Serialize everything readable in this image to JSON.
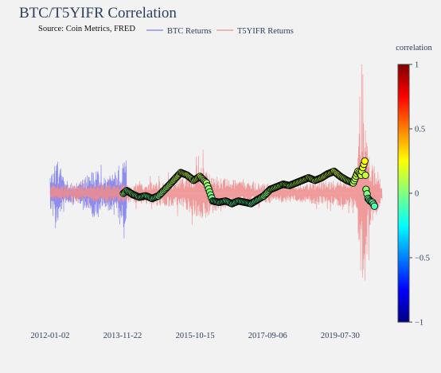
{
  "chart_data": {
    "type": "line",
    "title": "BTC/T5YIFR Correlation",
    "subtitle": "Source: Coin Metrics, FRED",
    "legend_placement": "top",
    "grid": false,
    "x_tick_labels": [
      "2012-01-02",
      "2013-11-22",
      "2015-10-15",
      "2017-09-06",
      "2019-07-30"
    ],
    "x_range": [
      "2012-01-02",
      "2020-09-01"
    ],
    "series": [
      {
        "name": "BTC Returns",
        "color": "#7b7bf0",
        "style": "line",
        "x_range": [
          "2012-01-02",
          "2013-12-31"
        ],
        "envelope": [
          {
            "x": "2012-01-02",
            "amp": 0.12
          },
          {
            "x": "2012-03-01",
            "amp": 0.3
          },
          {
            "x": "2012-06-01",
            "amp": 0.1
          },
          {
            "x": "2012-10-01",
            "amp": 0.08
          },
          {
            "x": "2013-03-01",
            "amp": 0.2
          },
          {
            "x": "2013-06-01",
            "amp": 0.12
          },
          {
            "x": "2013-10-01",
            "amp": 0.22
          },
          {
            "x": "2013-12-31",
            "amp": 0.3
          }
        ]
      },
      {
        "name": "T5YIFR Returns",
        "color": "#f08c8c",
        "style": "line",
        "x_range": [
          "2012-01-02",
          "2020-09-01"
        ],
        "envelope": [
          {
            "x": "2012-01-02",
            "amp": 0.06
          },
          {
            "x": "2013-06-01",
            "amp": 0.07
          },
          {
            "x": "2014-06-01",
            "amp": 0.08
          },
          {
            "x": "2015-06-01",
            "amp": 0.12
          },
          {
            "x": "2016-01-01",
            "amp": 0.22
          },
          {
            "x": "2016-06-01",
            "amp": 0.12
          },
          {
            "x": "2017-06-01",
            "amp": 0.08
          },
          {
            "x": "2018-06-01",
            "amp": 0.07
          },
          {
            "x": "2019-06-01",
            "amp": 0.1
          },
          {
            "x": "2020-01-01",
            "amp": 0.12
          },
          {
            "x": "2020-03-01",
            "amp": 0.95
          },
          {
            "x": "2020-05-01",
            "amp": 0.3
          },
          {
            "x": "2020-09-01",
            "amp": 0.08
          }
        ]
      },
      {
        "name": "Correlation",
        "style": "markers",
        "colorscale": "jet",
        "show_in_legend": false,
        "points": [
          {
            "x": "2013-12-01",
            "y": 0.0
          },
          {
            "x": "2014-01-01",
            "y": 0.02
          },
          {
            "x": "2014-03-01",
            "y": -0.01
          },
          {
            "x": "2014-05-01",
            "y": -0.03
          },
          {
            "x": "2014-07-01",
            "y": -0.02
          },
          {
            "x": "2014-09-01",
            "y": -0.04
          },
          {
            "x": "2014-11-01",
            "y": -0.02
          },
          {
            "x": "2015-01-01",
            "y": 0.03
          },
          {
            "x": "2015-03-01",
            "y": 0.08
          },
          {
            "x": "2015-04-15",
            "y": 0.12
          },
          {
            "x": "2015-06-01",
            "y": 0.16
          },
          {
            "x": "2015-08-01",
            "y": 0.14
          },
          {
            "x": "2015-10-01",
            "y": 0.1
          },
          {
            "x": "2015-12-01",
            "y": 0.13
          },
          {
            "x": "2016-02-01",
            "y": 0.08
          },
          {
            "x": "2016-04-01",
            "y": -0.06
          },
          {
            "x": "2016-06-01",
            "y": -0.07
          },
          {
            "x": "2016-08-01",
            "y": -0.06
          },
          {
            "x": "2016-10-01",
            "y": -0.08
          },
          {
            "x": "2016-12-01",
            "y": -0.06
          },
          {
            "x": "2017-02-01",
            "y": -0.07
          },
          {
            "x": "2017-04-01",
            "y": -0.08
          },
          {
            "x": "2017-06-01",
            "y": -0.05
          },
          {
            "x": "2017-08-01",
            "y": -0.02
          },
          {
            "x": "2017-10-01",
            "y": 0.03
          },
          {
            "x": "2017-12-01",
            "y": 0.05
          },
          {
            "x": "2018-02-01",
            "y": 0.07
          },
          {
            "x": "2018-04-01",
            "y": 0.06
          },
          {
            "x": "2018-06-01",
            "y": 0.08
          },
          {
            "x": "2018-08-01",
            "y": 0.1
          },
          {
            "x": "2018-10-01",
            "y": 0.12
          },
          {
            "x": "2018-12-01",
            "y": 0.1
          },
          {
            "x": "2019-02-01",
            "y": 0.12
          },
          {
            "x": "2019-04-01",
            "y": 0.15
          },
          {
            "x": "2019-06-01",
            "y": 0.17
          },
          {
            "x": "2019-08-01",
            "y": 0.13
          },
          {
            "x": "2019-10-01",
            "y": 0.1
          },
          {
            "x": "2019-12-01",
            "y": 0.08
          },
          {
            "x": "2020-01-15",
            "y": 0.17
          },
          {
            "x": "2020-02-15",
            "y": 0.14
          },
          {
            "x": "2020-03-01",
            "y": 0.2
          },
          {
            "x": "2020-03-20",
            "y": 0.25
          },
          {
            "x": "2020-04-01",
            "y": 0.03
          },
          {
            "x": "2020-04-20",
            "y": -0.04
          },
          {
            "x": "2020-05-10",
            "y": -0.06
          },
          {
            "x": "2020-06-01",
            "y": -0.07
          },
          {
            "x": "2020-06-20",
            "y": -0.1
          }
        ]
      }
    ],
    "y_range": [
      -1,
      1
    ],
    "colorbar": {
      "title": "correlation",
      "range": [
        -1,
        1
      ],
      "tick_values": [
        1,
        0.5,
        0,
        -0.5,
        -1
      ],
      "tick_labels": [
        "1",
        "0.5",
        "0",
        "−0.5",
        "−1"
      ]
    }
  }
}
